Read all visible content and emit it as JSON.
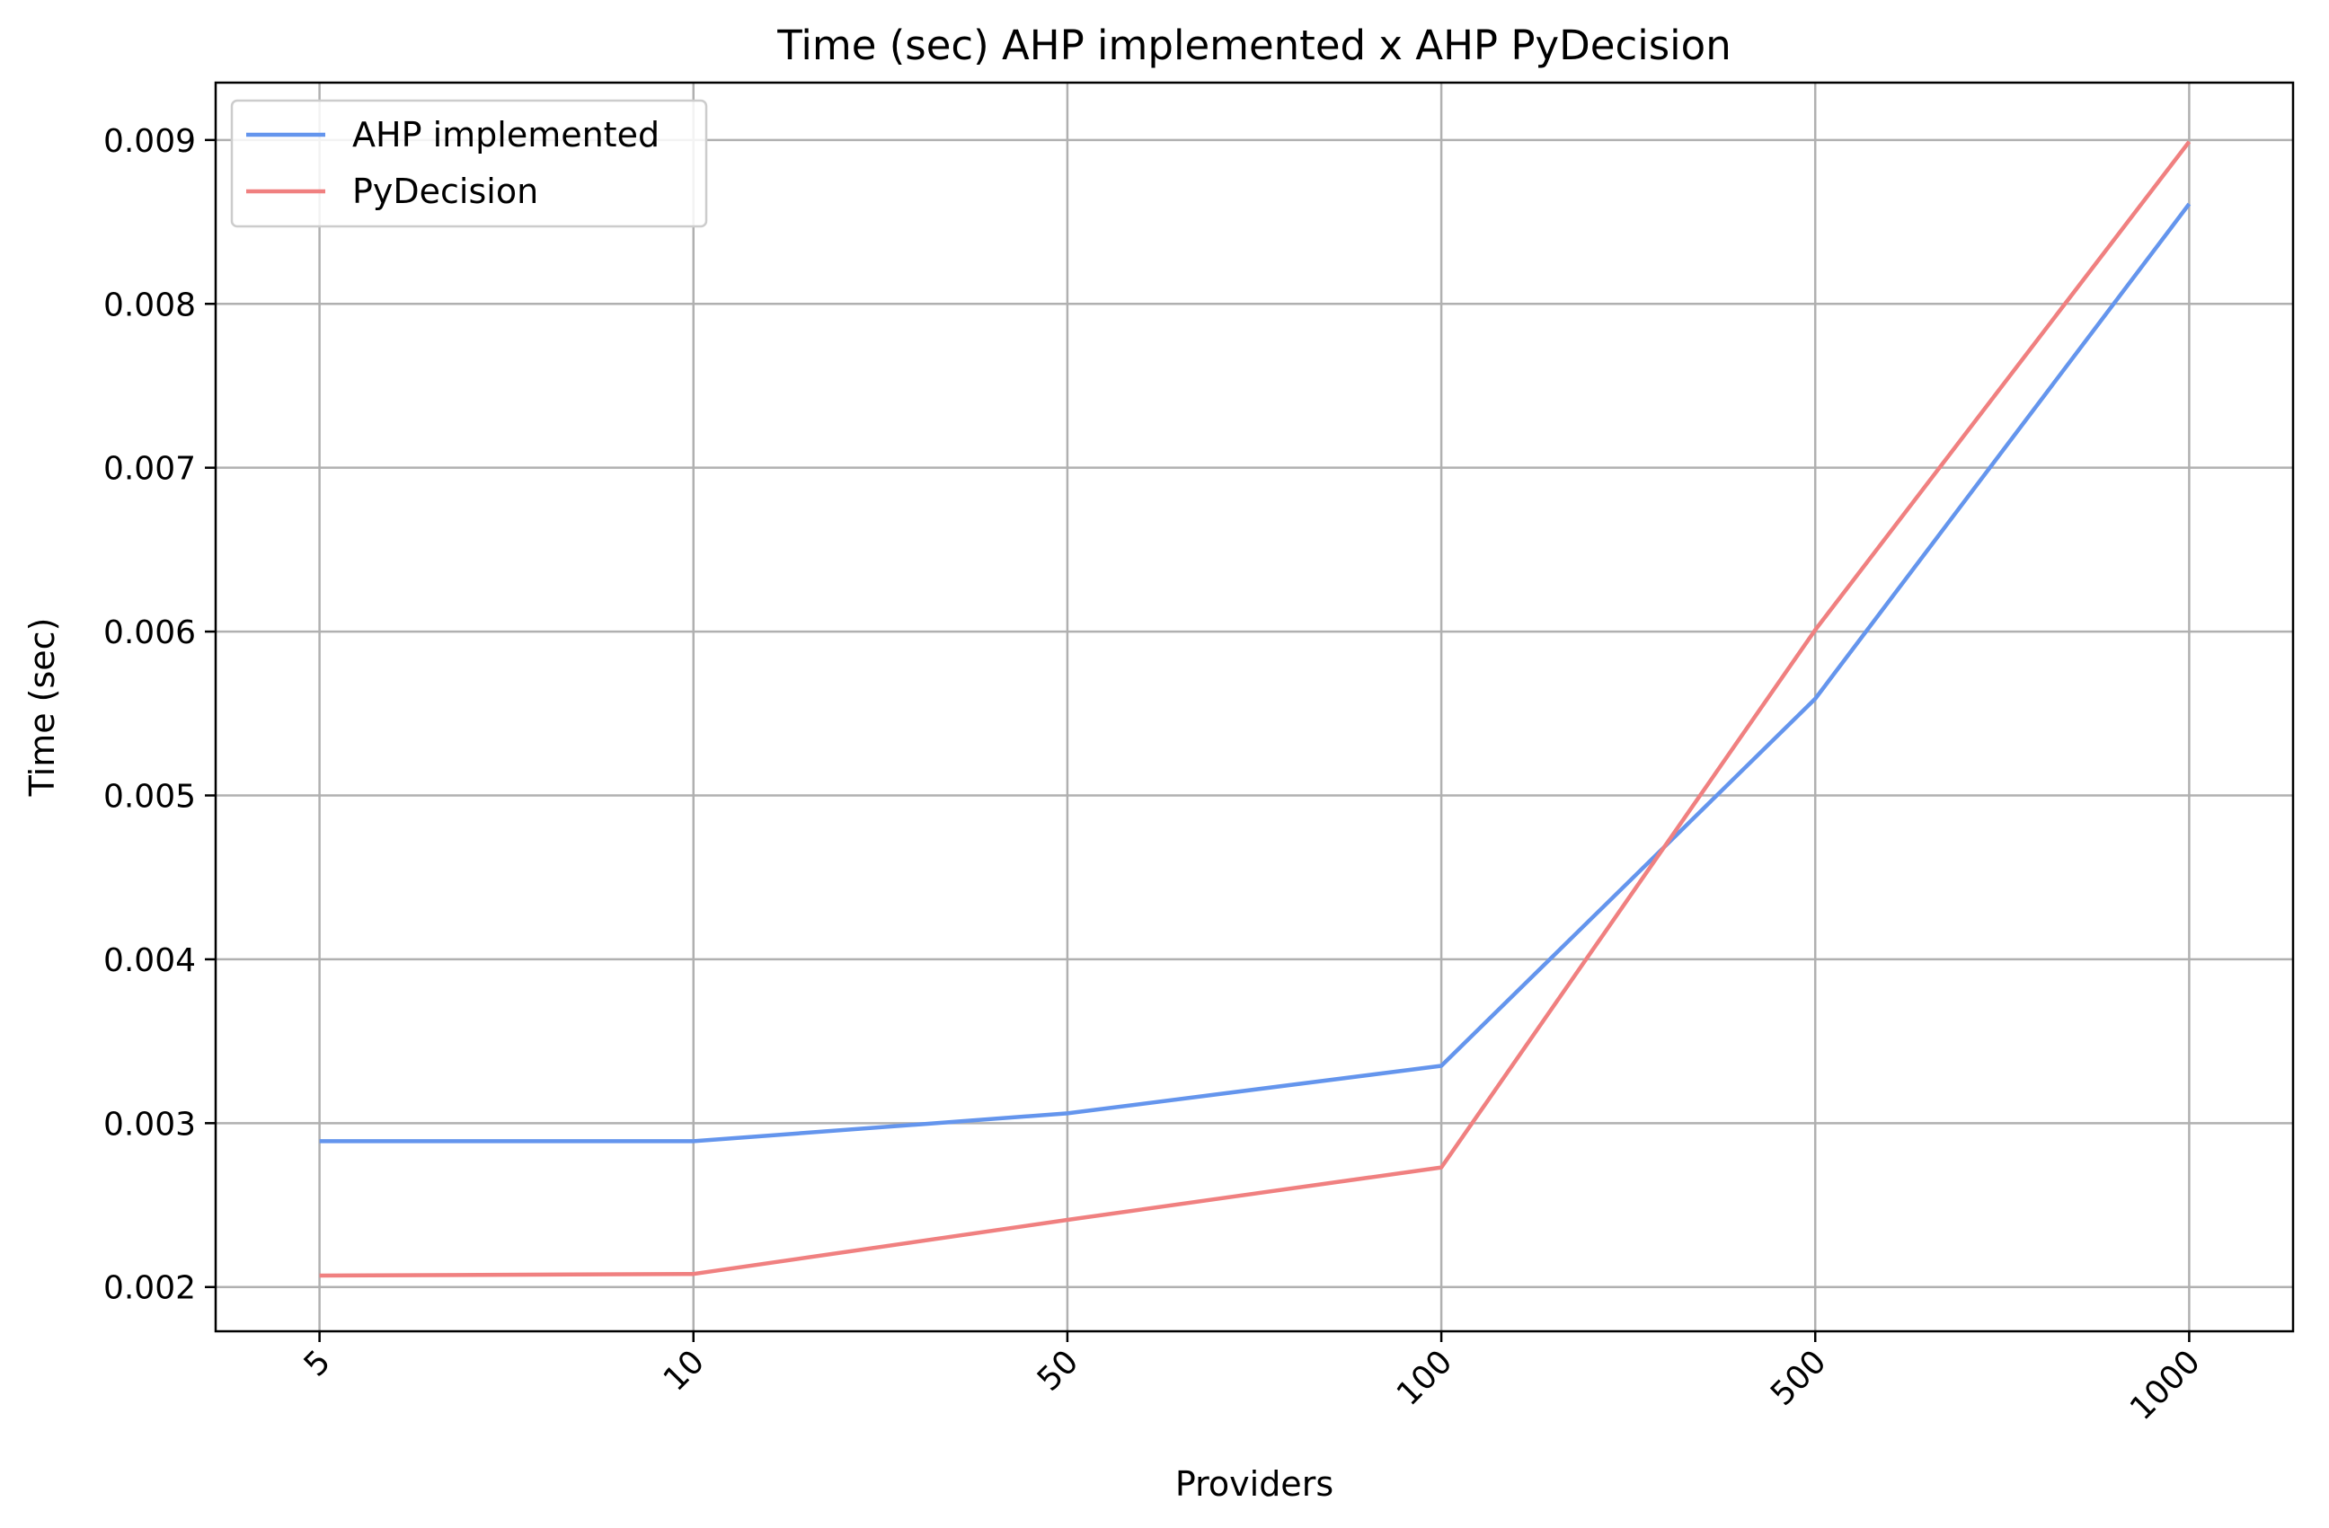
{
  "chart_data": {
    "type": "line",
    "title": "Time (sec) AHP implemented x AHP PyDecision",
    "xlabel": "Providers",
    "ylabel": "Time (sec)",
    "categories": [
      "5",
      "10",
      "50",
      "100",
      "500",
      "1000"
    ],
    "y_ticks": [
      "0.002",
      "0.003",
      "0.004",
      "0.005",
      "0.006",
      "0.007",
      "0.008",
      "0.009"
    ],
    "ylim": [
      0.00173,
      0.00935
    ],
    "grid": true,
    "legend_position": "top-left",
    "series": [
      {
        "name": "AHP implemented",
        "color": "#6495ED",
        "values": [
          0.00289,
          0.00289,
          0.00306,
          0.00335,
          0.00559,
          0.00861
        ]
      },
      {
        "name": "PyDecision",
        "color": "#F08080",
        "values": [
          0.00207,
          0.00208,
          0.00241,
          0.00273,
          0.00601,
          0.00899
        ]
      }
    ]
  }
}
